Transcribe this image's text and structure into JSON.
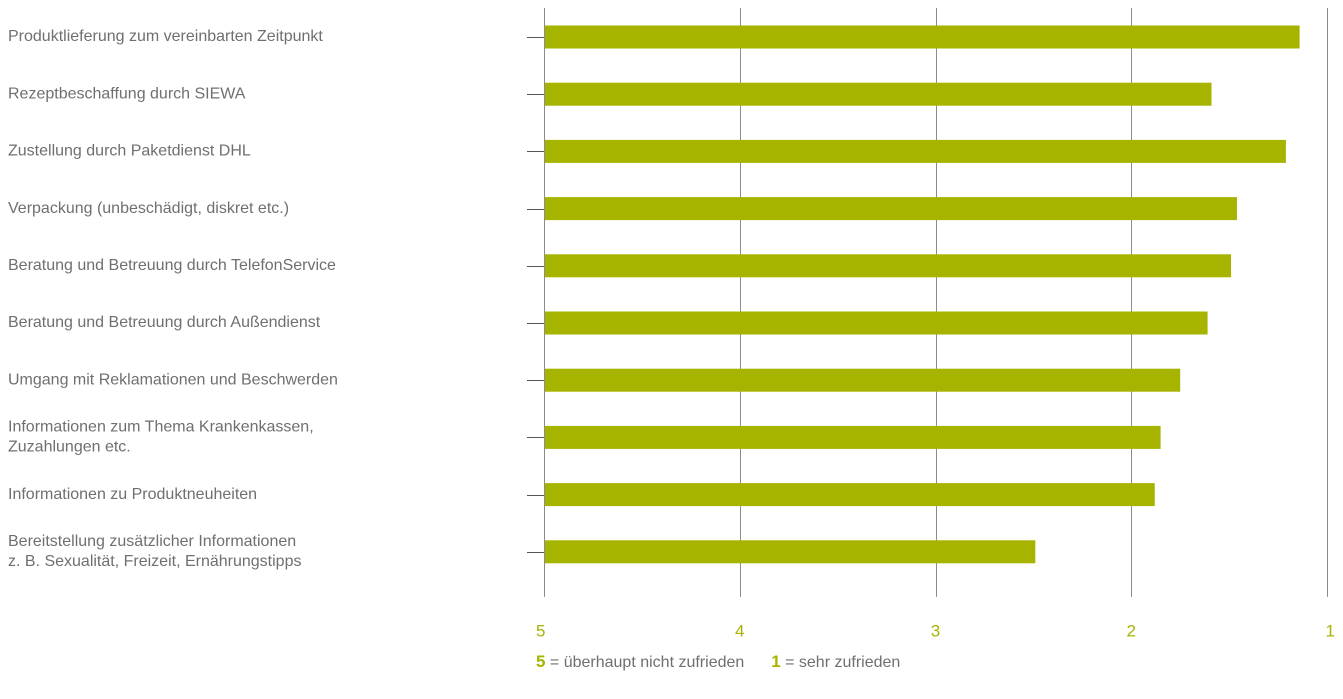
{
  "chart_data": {
    "type": "bar",
    "orientation": "horizontal",
    "categories": [
      [
        "Produktlieferung zum vereinbarten Zeitpunkt"
      ],
      [
        "Rezeptbeschaffung durch SIEWA"
      ],
      [
        "Zustellung durch Paketdienst DHL"
      ],
      [
        "Verpackung (unbeschädigt, diskret etc.)"
      ],
      [
        "Beratung und Betreuung durch TelefonService"
      ],
      [
        "Beratung und Betreuung durch Außendienst"
      ],
      [
        "Umgang mit Reklamationen und Beschwerden"
      ],
      [
        "Informationen zum Thema Krankenkassen,",
        "Zuzahlungen etc."
      ],
      [
        "Informationen zu Produktneuheiten"
      ],
      [
        "Bereitstellung zusätzlicher Informationen",
        "z. B. Sexualität, Freizeit, Ernährungstipps"
      ]
    ],
    "values": [
      1.14,
      1.59,
      1.21,
      1.46,
      1.49,
      1.61,
      1.75,
      1.85,
      1.88,
      2.49
    ],
    "xlim": [
      5,
      1
    ],
    "xticks": [
      "5",
      "4",
      "3",
      "2",
      "1"
    ],
    "grid": true,
    "bar_color": "#a6b400",
    "grid_color": "#8c8c8c",
    "tick_label_color": "#a6b400"
  },
  "legend": {
    "low_num": "5",
    "low_text": "= überhaupt nicht zufrieden",
    "high_num": "1",
    "high_text": "= sehr zufrieden"
  }
}
